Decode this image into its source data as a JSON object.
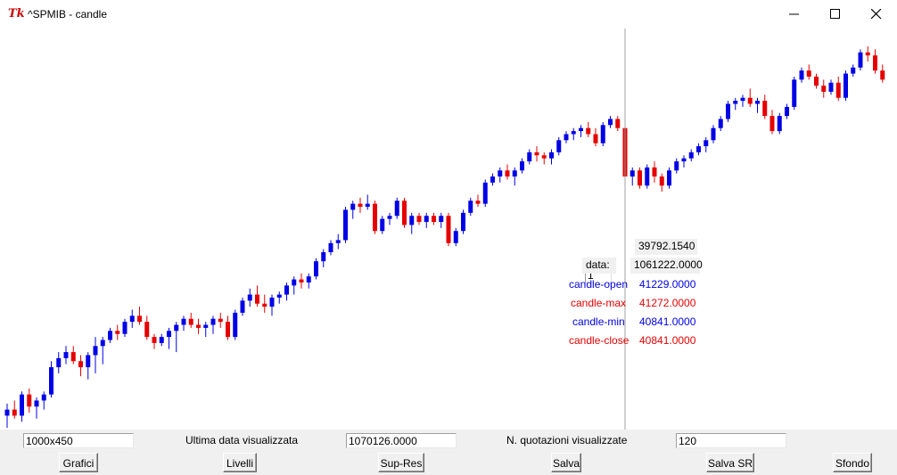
{
  "window": {
    "title": "^SPMIB - candle",
    "icon_text": "Tk"
  },
  "info": {
    "index_value": "1",
    "price_value": "39792.1540",
    "date_label": "data:",
    "date_value": "1061222.0000",
    "open_label": "candle-open",
    "open_value": "41229.0000",
    "max_label": "candle-max",
    "max_value": "41272.0000",
    "min_label": "candle-min",
    "min_value": "40841.0000",
    "close_label": "candle-close",
    "close_value": "40841.0000"
  },
  "bottom": {
    "size_value": "1000x450",
    "last_date_label": "Ultima data visualizzata",
    "last_date_value": "1070126.0000",
    "count_label": "N. quotazioni visualizzate",
    "count_value": "120",
    "buttons": {
      "grafici": "Grafici",
      "livelli": "Livelli",
      "supres": "Sup-Res",
      "salva": "Salva",
      "salvasr": "Salva SR",
      "sfondo": "Sfondo"
    }
  },
  "colors": {
    "up": "#0000e6",
    "down": "#e60000",
    "crosshair": "#a0a0a0"
  },
  "chart_data": {
    "type": "candlestick",
    "series": [
      {
        "values": [
          [
            0.1,
            0.14,
            0.06,
            0.12
          ],
          [
            0.12,
            0.15,
            0.09,
            0.1
          ],
          [
            0.1,
            0.18,
            0.08,
            0.17
          ],
          [
            0.17,
            0.19,
            0.11,
            0.13
          ],
          [
            0.13,
            0.16,
            0.09,
            0.15
          ],
          [
            0.15,
            0.18,
            0.12,
            0.17
          ],
          [
            0.17,
            0.28,
            0.16,
            0.26
          ],
          [
            0.26,
            0.31,
            0.24,
            0.29
          ],
          [
            0.29,
            0.33,
            0.27,
            0.31
          ],
          [
            0.31,
            0.33,
            0.27,
            0.28
          ],
          [
            0.28,
            0.3,
            0.23,
            0.26
          ],
          [
            0.26,
            0.31,
            0.22,
            0.3
          ],
          [
            0.3,
            0.36,
            0.24,
            0.33
          ],
          [
            0.33,
            0.36,
            0.27,
            0.35
          ],
          [
            0.35,
            0.39,
            0.34,
            0.38
          ],
          [
            0.38,
            0.4,
            0.35,
            0.37
          ],
          [
            0.37,
            0.42,
            0.36,
            0.41
          ],
          [
            0.41,
            0.45,
            0.39,
            0.43
          ],
          [
            0.43,
            0.46,
            0.4,
            0.41
          ],
          [
            0.41,
            0.43,
            0.35,
            0.36
          ],
          [
            0.36,
            0.37,
            0.32,
            0.34
          ],
          [
            0.34,
            0.37,
            0.33,
            0.36
          ],
          [
            0.36,
            0.39,
            0.32,
            0.38
          ],
          [
            0.38,
            0.41,
            0.31,
            0.4
          ],
          [
            0.4,
            0.43,
            0.38,
            0.42
          ],
          [
            0.42,
            0.44,
            0.39,
            0.4
          ],
          [
            0.4,
            0.42,
            0.37,
            0.39
          ],
          [
            0.39,
            0.41,
            0.36,
            0.4
          ],
          [
            0.4,
            0.43,
            0.37,
            0.42
          ],
          [
            0.42,
            0.44,
            0.39,
            0.41
          ],
          [
            0.41,
            0.43,
            0.35,
            0.36
          ],
          [
            0.36,
            0.45,
            0.35,
            0.44
          ],
          [
            0.44,
            0.49,
            0.43,
            0.48
          ],
          [
            0.48,
            0.52,
            0.46,
            0.5
          ],
          [
            0.5,
            0.53,
            0.46,
            0.47
          ],
          [
            0.47,
            0.5,
            0.44,
            0.46
          ],
          [
            0.46,
            0.5,
            0.43,
            0.49
          ],
          [
            0.49,
            0.51,
            0.47,
            0.5
          ],
          [
            0.5,
            0.54,
            0.48,
            0.53
          ],
          [
            0.53,
            0.56,
            0.5,
            0.55
          ],
          [
            0.55,
            0.57,
            0.52,
            0.54
          ],
          [
            0.54,
            0.57,
            0.52,
            0.56
          ],
          [
            0.56,
            0.62,
            0.55,
            0.61
          ],
          [
            0.61,
            0.65,
            0.59,
            0.64
          ],
          [
            0.64,
            0.68,
            0.63,
            0.67
          ],
          [
            0.67,
            0.7,
            0.65,
            0.68
          ],
          [
            0.68,
            0.79,
            0.67,
            0.78
          ],
          [
            0.78,
            0.81,
            0.75,
            0.8
          ],
          [
            0.8,
            0.82,
            0.77,
            0.79
          ],
          [
            0.79,
            0.83,
            0.78,
            0.8
          ],
          [
            0.8,
            0.81,
            0.7,
            0.71
          ],
          [
            0.71,
            0.76,
            0.7,
            0.75
          ],
          [
            0.75,
            0.77,
            0.73,
            0.76
          ],
          [
            0.76,
            0.82,
            0.75,
            0.81
          ],
          [
            0.81,
            0.82,
            0.72,
            0.73
          ],
          [
            0.73,
            0.77,
            0.7,
            0.76
          ],
          [
            0.76,
            0.77,
            0.73,
            0.74
          ],
          [
            0.74,
            0.77,
            0.72,
            0.76
          ],
          [
            0.76,
            0.77,
            0.73,
            0.74
          ],
          [
            0.74,
            0.77,
            0.72,
            0.76
          ],
          [
            0.76,
            0.77,
            0.66,
            0.67
          ],
          [
            0.67,
            0.72,
            0.66,
            0.71
          ],
          [
            0.71,
            0.78,
            0.7,
            0.77
          ],
          [
            0.77,
            0.82,
            0.76,
            0.81
          ],
          [
            0.81,
            0.83,
            0.79,
            0.8
          ],
          [
            0.8,
            0.88,
            0.79,
            0.87
          ],
          [
            0.87,
            0.9,
            0.86,
            0.89
          ],
          [
            0.89,
            0.92,
            0.87,
            0.91
          ],
          [
            0.91,
            0.93,
            0.88,
            0.89
          ],
          [
            0.89,
            0.92,
            0.86,
            0.91
          ],
          [
            0.91,
            0.95,
            0.9,
            0.94
          ],
          [
            0.94,
            0.98,
            0.93,
            0.97
          ],
          [
            0.97,
            0.99,
            0.94,
            0.96
          ],
          [
            0.96,
            0.97,
            0.93,
            0.95
          ],
          [
            0.95,
            0.98,
            0.93,
            0.97
          ],
          [
            0.97,
            1.02,
            0.96,
            1.01
          ],
          [
            1.01,
            1.04,
            1.0,
            1.03
          ],
          [
            1.03,
            1.05,
            1.01,
            1.04
          ],
          [
            1.04,
            1.06,
            1.02,
            1.05
          ],
          [
            1.05,
            1.07,
            1.02,
            1.03
          ],
          [
            1.03,
            1.05,
            0.99,
            1.0
          ],
          [
            1.0,
            1.07,
            0.99,
            1.06
          ],
          [
            1.06,
            1.09,
            1.05,
            1.08
          ],
          [
            1.08,
            1.09,
            1.04,
            1.05
          ],
          [
            1.05,
            1.06,
            0.88,
            0.89
          ],
          [
            0.89,
            0.92,
            0.86,
            0.91
          ],
          [
            0.91,
            0.92,
            0.85,
            0.86
          ],
          [
            0.86,
            0.93,
            0.85,
            0.92
          ],
          [
            0.92,
            0.94,
            0.87,
            0.89
          ],
          [
            0.89,
            0.9,
            0.84,
            0.86
          ],
          [
            0.86,
            0.92,
            0.85,
            0.91
          ],
          [
            0.91,
            0.95,
            0.9,
            0.94
          ],
          [
            0.94,
            0.96,
            0.92,
            0.95
          ],
          [
            0.95,
            0.98,
            0.94,
            0.97
          ],
          [
            0.97,
            1.0,
            0.96,
            0.99
          ],
          [
            0.99,
            1.02,
            0.97,
            1.01
          ],
          [
            1.01,
            1.06,
            1.0,
            1.05
          ],
          [
            1.05,
            1.09,
            1.04,
            1.08
          ],
          [
            1.08,
            1.14,
            1.07,
            1.13
          ],
          [
            1.13,
            1.15,
            1.11,
            1.14
          ],
          [
            1.14,
            1.16,
            1.12,
            1.15
          ],
          [
            1.15,
            1.18,
            1.12,
            1.13
          ],
          [
            1.13,
            1.15,
            1.1,
            1.14
          ],
          [
            1.14,
            1.16,
            1.08,
            1.09
          ],
          [
            1.09,
            1.11,
            1.03,
            1.04
          ],
          [
            1.04,
            1.1,
            1.03,
            1.09
          ],
          [
            1.09,
            1.13,
            1.08,
            1.12
          ],
          [
            1.12,
            1.22,
            1.11,
            1.21
          ],
          [
            1.21,
            1.25,
            1.2,
            1.24
          ],
          [
            1.24,
            1.26,
            1.21,
            1.22
          ],
          [
            1.22,
            1.23,
            1.18,
            1.19
          ],
          [
            1.19,
            1.21,
            1.15,
            1.17
          ],
          [
            1.17,
            1.21,
            1.16,
            1.2
          ],
          [
            1.2,
            1.22,
            1.14,
            1.15
          ],
          [
            1.15,
            1.24,
            1.14,
            1.23
          ],
          [
            1.23,
            1.26,
            1.22,
            1.25
          ],
          [
            1.25,
            1.31,
            1.24,
            1.3
          ],
          [
            1.3,
            1.32,
            1.27,
            1.29
          ],
          [
            1.29,
            1.31,
            1.23,
            1.24
          ],
          [
            1.24,
            1.26,
            1.2,
            1.21
          ]
        ]
      }
    ],
    "yscale": "relative",
    "grid": false,
    "crosshair_index": 84
  }
}
